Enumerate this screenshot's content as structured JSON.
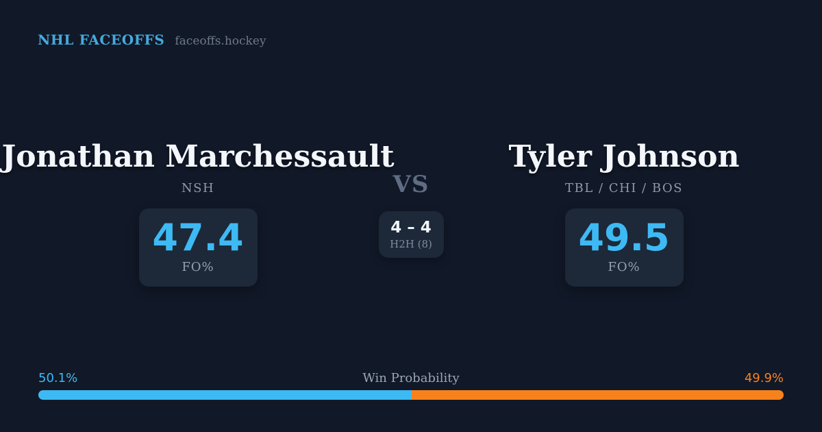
{
  "header": {
    "brand": "NHL FACEOFFS",
    "domain": "faceoffs.hockey"
  },
  "matchup": {
    "vs_label": "VS",
    "h2h": {
      "score": "4 – 4",
      "label": "H2H (8)"
    },
    "players": [
      {
        "name": "Jonathan Marchessault",
        "teams": "NSH",
        "fo_pct": "47.4",
        "fo_label": "FO%"
      },
      {
        "name": "Tyler Johnson",
        "teams": "TBL / CHI / BOS",
        "fo_pct": "49.5",
        "fo_label": "FO%"
      }
    ]
  },
  "win_probability": {
    "title": "Win Probability",
    "left_label": "50.1%",
    "right_label": "49.9%",
    "left_value": 50.1,
    "right_value": 49.9
  },
  "colors": {
    "background": "#111827",
    "card_background": "#1d2838",
    "accent_blue": "#3dbaf4",
    "accent_orange": "#f7821c",
    "brand_blue": "#45aade"
  }
}
